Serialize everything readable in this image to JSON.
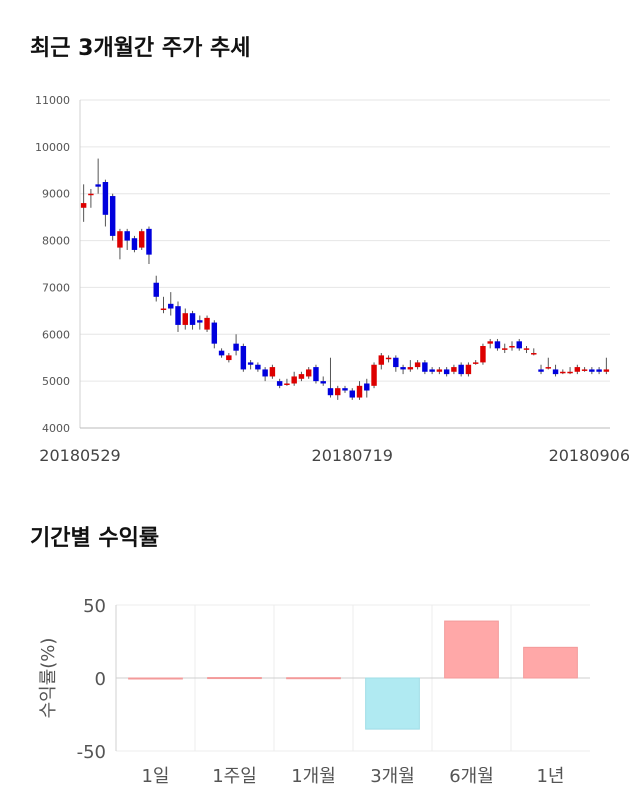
{
  "section1": {
    "title": "최근 3개월간 주가 추세"
  },
  "section2": {
    "title": "기간별 수익률"
  },
  "chart_data": [
    {
      "type": "candlestick",
      "ylim": [
        4000,
        11000
      ],
      "yticks": [
        11000,
        10000,
        9000,
        8000,
        7000,
        6000,
        5000,
        4000
      ],
      "xtick_labels": [
        "20180529",
        "20180719",
        "20180906"
      ],
      "xtick_index": [
        0,
        37,
        74
      ],
      "up_color": "#dd0000",
      "down_color": "#0000dd",
      "candles": [
        [
          8700,
          8800,
          9200,
          8400
        ],
        [
          9000,
          9000,
          9100,
          8700
        ],
        [
          9200,
          9150,
          9750,
          9000
        ],
        [
          9250,
          8550,
          9300,
          8300
        ],
        [
          8950,
          8100,
          9000,
          8000
        ],
        [
          7850,
          8200,
          8250,
          7600
        ],
        [
          8200,
          8000,
          8250,
          7800
        ],
        [
          8050,
          7800,
          8100,
          7750
        ],
        [
          7850,
          8200,
          8250,
          7800
        ],
        [
          8250,
          7700,
          8300,
          7500
        ],
        [
          7100,
          6800,
          7250,
          6700
        ],
        [
          6550,
          6550,
          6800,
          6450
        ],
        [
          6650,
          6550,
          6900,
          6400
        ],
        [
          6600,
          6200,
          6700,
          6050
        ],
        [
          6200,
          6450,
          6550,
          6100
        ],
        [
          6450,
          6200,
          6500,
          6100
        ],
        [
          6300,
          6250,
          6400,
          6100
        ],
        [
          6100,
          6350,
          6400,
          6050
        ],
        [
          6250,
          5800,
          6300,
          5700
        ],
        [
          5650,
          5550,
          5700,
          5500
        ],
        [
          5450,
          5550,
          5600,
          5400
        ],
        [
          5800,
          5650,
          6000,
          5550
        ],
        [
          5750,
          5250,
          5800,
          5200
        ],
        [
          5400,
          5350,
          5450,
          5250
        ],
        [
          5350,
          5250,
          5400,
          5200
        ],
        [
          5250,
          5100,
          5300,
          5000
        ],
        [
          5100,
          5300,
          5350,
          5050
        ],
        [
          5000,
          4900,
          5050,
          4850
        ],
        [
          4950,
          4950,
          5050,
          4900
        ],
        [
          4950,
          5100,
          5200,
          4900
        ],
        [
          5050,
          5150,
          5200,
          5000
        ],
        [
          5100,
          5250,
          5300,
          5050
        ],
        [
          5300,
          5000,
          5350,
          4950
        ],
        [
          5000,
          4950,
          5100,
          4900
        ],
        [
          4850,
          4700,
          5500,
          4650
        ],
        [
          4700,
          4850,
          4900,
          4600
        ],
        [
          4850,
          4800,
          4900,
          4750
        ],
        [
          4800,
          4650,
          4850,
          4600
        ],
        [
          4650,
          4900,
          5000,
          4600
        ],
        [
          4950,
          4800,
          5050,
          4650
        ],
        [
          4900,
          5350,
          5400,
          4850
        ],
        [
          5350,
          5550,
          5600,
          5250
        ],
        [
          5500,
          5500,
          5550,
          5400
        ],
        [
          5500,
          5300,
          5550,
          5200
        ],
        [
          5300,
          5250,
          5350,
          5150
        ],
        [
          5250,
          5300,
          5450,
          5200
        ],
        [
          5300,
          5400,
          5450,
          5250
        ],
        [
          5400,
          5200,
          5450,
          5150
        ],
        [
          5250,
          5200,
          5300,
          5150
        ],
        [
          5200,
          5250,
          5300,
          5150
        ],
        [
          5250,
          5150,
          5300,
          5100
        ],
        [
          5200,
          5300,
          5350,
          5150
        ],
        [
          5350,
          5150,
          5400,
          5100
        ],
        [
          5150,
          5350,
          5400,
          5100
        ],
        [
          5400,
          5400,
          5450,
          5350
        ],
        [
          5400,
          5750,
          5800,
          5350
        ],
        [
          5800,
          5850,
          5900,
          5700
        ],
        [
          5850,
          5700,
          5900,
          5650
        ],
        [
          5700,
          5700,
          5800,
          5600
        ],
        [
          5750,
          5750,
          5850,
          5650
        ],
        [
          5850,
          5700,
          5900,
          5650
        ],
        [
          5700,
          5700,
          5750,
          5600
        ],
        [
          5600,
          5600,
          5700,
          5550
        ],
        [
          5250,
          5200,
          5350,
          5150
        ],
        [
          5300,
          5300,
          5500,
          5250
        ],
        [
          5250,
          5150,
          5350,
          5100
        ],
        [
          5200,
          5200,
          5250,
          5150
        ],
        [
          5200,
          5200,
          5300,
          5150
        ],
        [
          5200,
          5300,
          5350,
          5150
        ],
        [
          5250,
          5250,
          5300,
          5200
        ],
        [
          5250,
          5200,
          5300,
          5150
        ],
        [
          5250,
          5200,
          5300,
          5150
        ],
        [
          5200,
          5250,
          5500,
          5150
        ]
      ]
    },
    {
      "type": "bar",
      "categories": [
        "1일",
        "1주일",
        "1개월",
        "3개월",
        "6개월",
        "1년"
      ],
      "values": [
        0,
        0.3,
        0.2,
        -35,
        39,
        21
      ],
      "ylabel": "수익률(%)",
      "ylim": [
        -50,
        50
      ],
      "yticks": [
        50,
        0,
        -50
      ],
      "positive_color": "#ffa8a8",
      "negative_color": "#b0eaf2"
    }
  ]
}
